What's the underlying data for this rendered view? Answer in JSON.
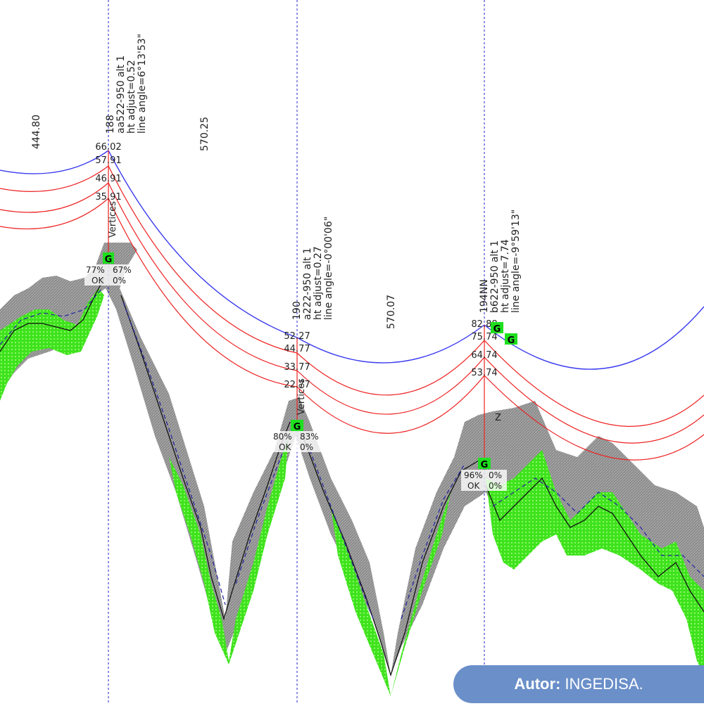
{
  "spans": [
    {
      "length": "444.80"
    },
    {
      "length": "570.25"
    },
    {
      "length": "570.07"
    }
  ],
  "structures": [
    {
      "id": "188",
      "label_lines": [
        "188",
        "aa522-950 alt 1",
        "ht adjust=0.52",
        "line angle=6°13'53\""
      ],
      "heights": [
        "66.02",
        "57.91",
        "46.91",
        "35.91"
      ],
      "vertices_label": "Vertices",
      "status": [
        "77%",
        "67%",
        "OK",
        "0%"
      ],
      "ground_marker": "G"
    },
    {
      "id": "190",
      "label_lines": [
        "190",
        "a222-950 alt 1",
        "ht adjust=0.27",
        "line angle=-0°00'06\""
      ],
      "heights": [
        "52.27",
        "44.77",
        "33.77",
        "22.77"
      ],
      "vertices_label": "Vertices",
      "status": [
        "80%",
        "83%",
        "OK",
        "0%"
      ],
      "ground_marker": "G"
    },
    {
      "id": "194NN",
      "label_lines": [
        "194NN",
        "b622-950 alt 1",
        "ht adjust=7.74",
        "line angle=-9°59'13\""
      ],
      "heights": [
        "82.88",
        "75.74",
        "64.74",
        "53.74"
      ],
      "status": [
        "96%",
        "0%",
        "OK",
        "0%"
      ],
      "ground_marker": "G",
      "extra_markers": [
        "G",
        "G"
      ],
      "z_label": "Z"
    }
  ],
  "colors": {
    "ground_wire": "#3a3af0",
    "conductors": "#ee2020",
    "vegetation": "#33e61a",
    "terrain_cloud": "#7a7a7a",
    "guides": "#2222cc"
  },
  "credit": {
    "prefix": "Autor:",
    "name": "INGEDISA."
  }
}
